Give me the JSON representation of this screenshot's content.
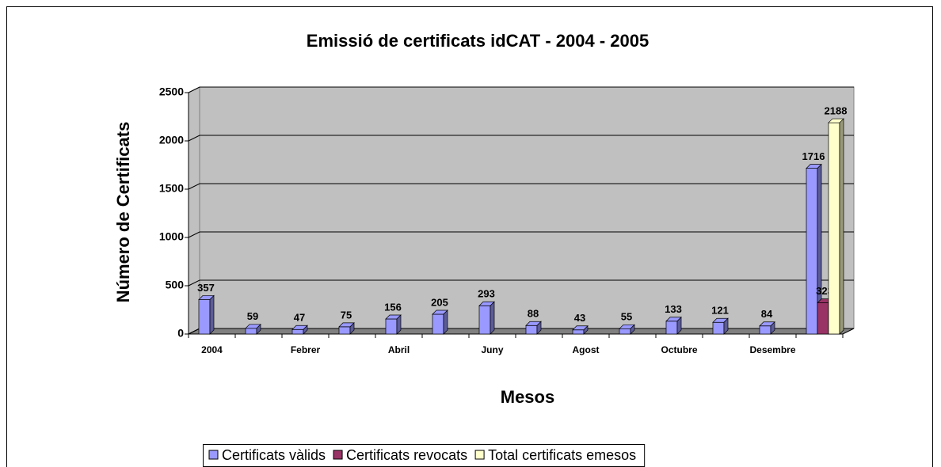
{
  "chart_data": {
    "type": "bar",
    "title": "Emissió de certificats idCAT - 2004 - 2005",
    "x_label": "Mesos",
    "y_label": "Número de Certificats",
    "categories": [
      "2004",
      null,
      "Febrer",
      null,
      "Abril",
      null,
      "Juny",
      null,
      "Agost",
      null,
      "Octubre",
      null,
      "Desembre",
      null
    ],
    "series": [
      {
        "name": "Certificats vàlids",
        "color": "#9999ff",
        "values": [
          357,
          59,
          47,
          75,
          156,
          205,
          293,
          88,
          43,
          55,
          133,
          121,
          84,
          1716
        ]
      },
      {
        "name": "Certificats revocats",
        "color": "#993366",
        "values": [
          null,
          null,
          null,
          null,
          null,
          null,
          null,
          null,
          null,
          null,
          null,
          null,
          null,
          323
        ]
      },
      {
        "name": "Total certificats emesos",
        "color": "#ffffcc",
        "values": [
          null,
          null,
          null,
          null,
          null,
          null,
          null,
          null,
          null,
          null,
          null,
          null,
          null,
          2188
        ]
      }
    ],
    "ylim": [
      0,
      2500
    ],
    "yticks": [
      0,
      500,
      1000,
      1500,
      2000,
      2500
    ],
    "grid": true,
    "legend": "bottom"
  }
}
